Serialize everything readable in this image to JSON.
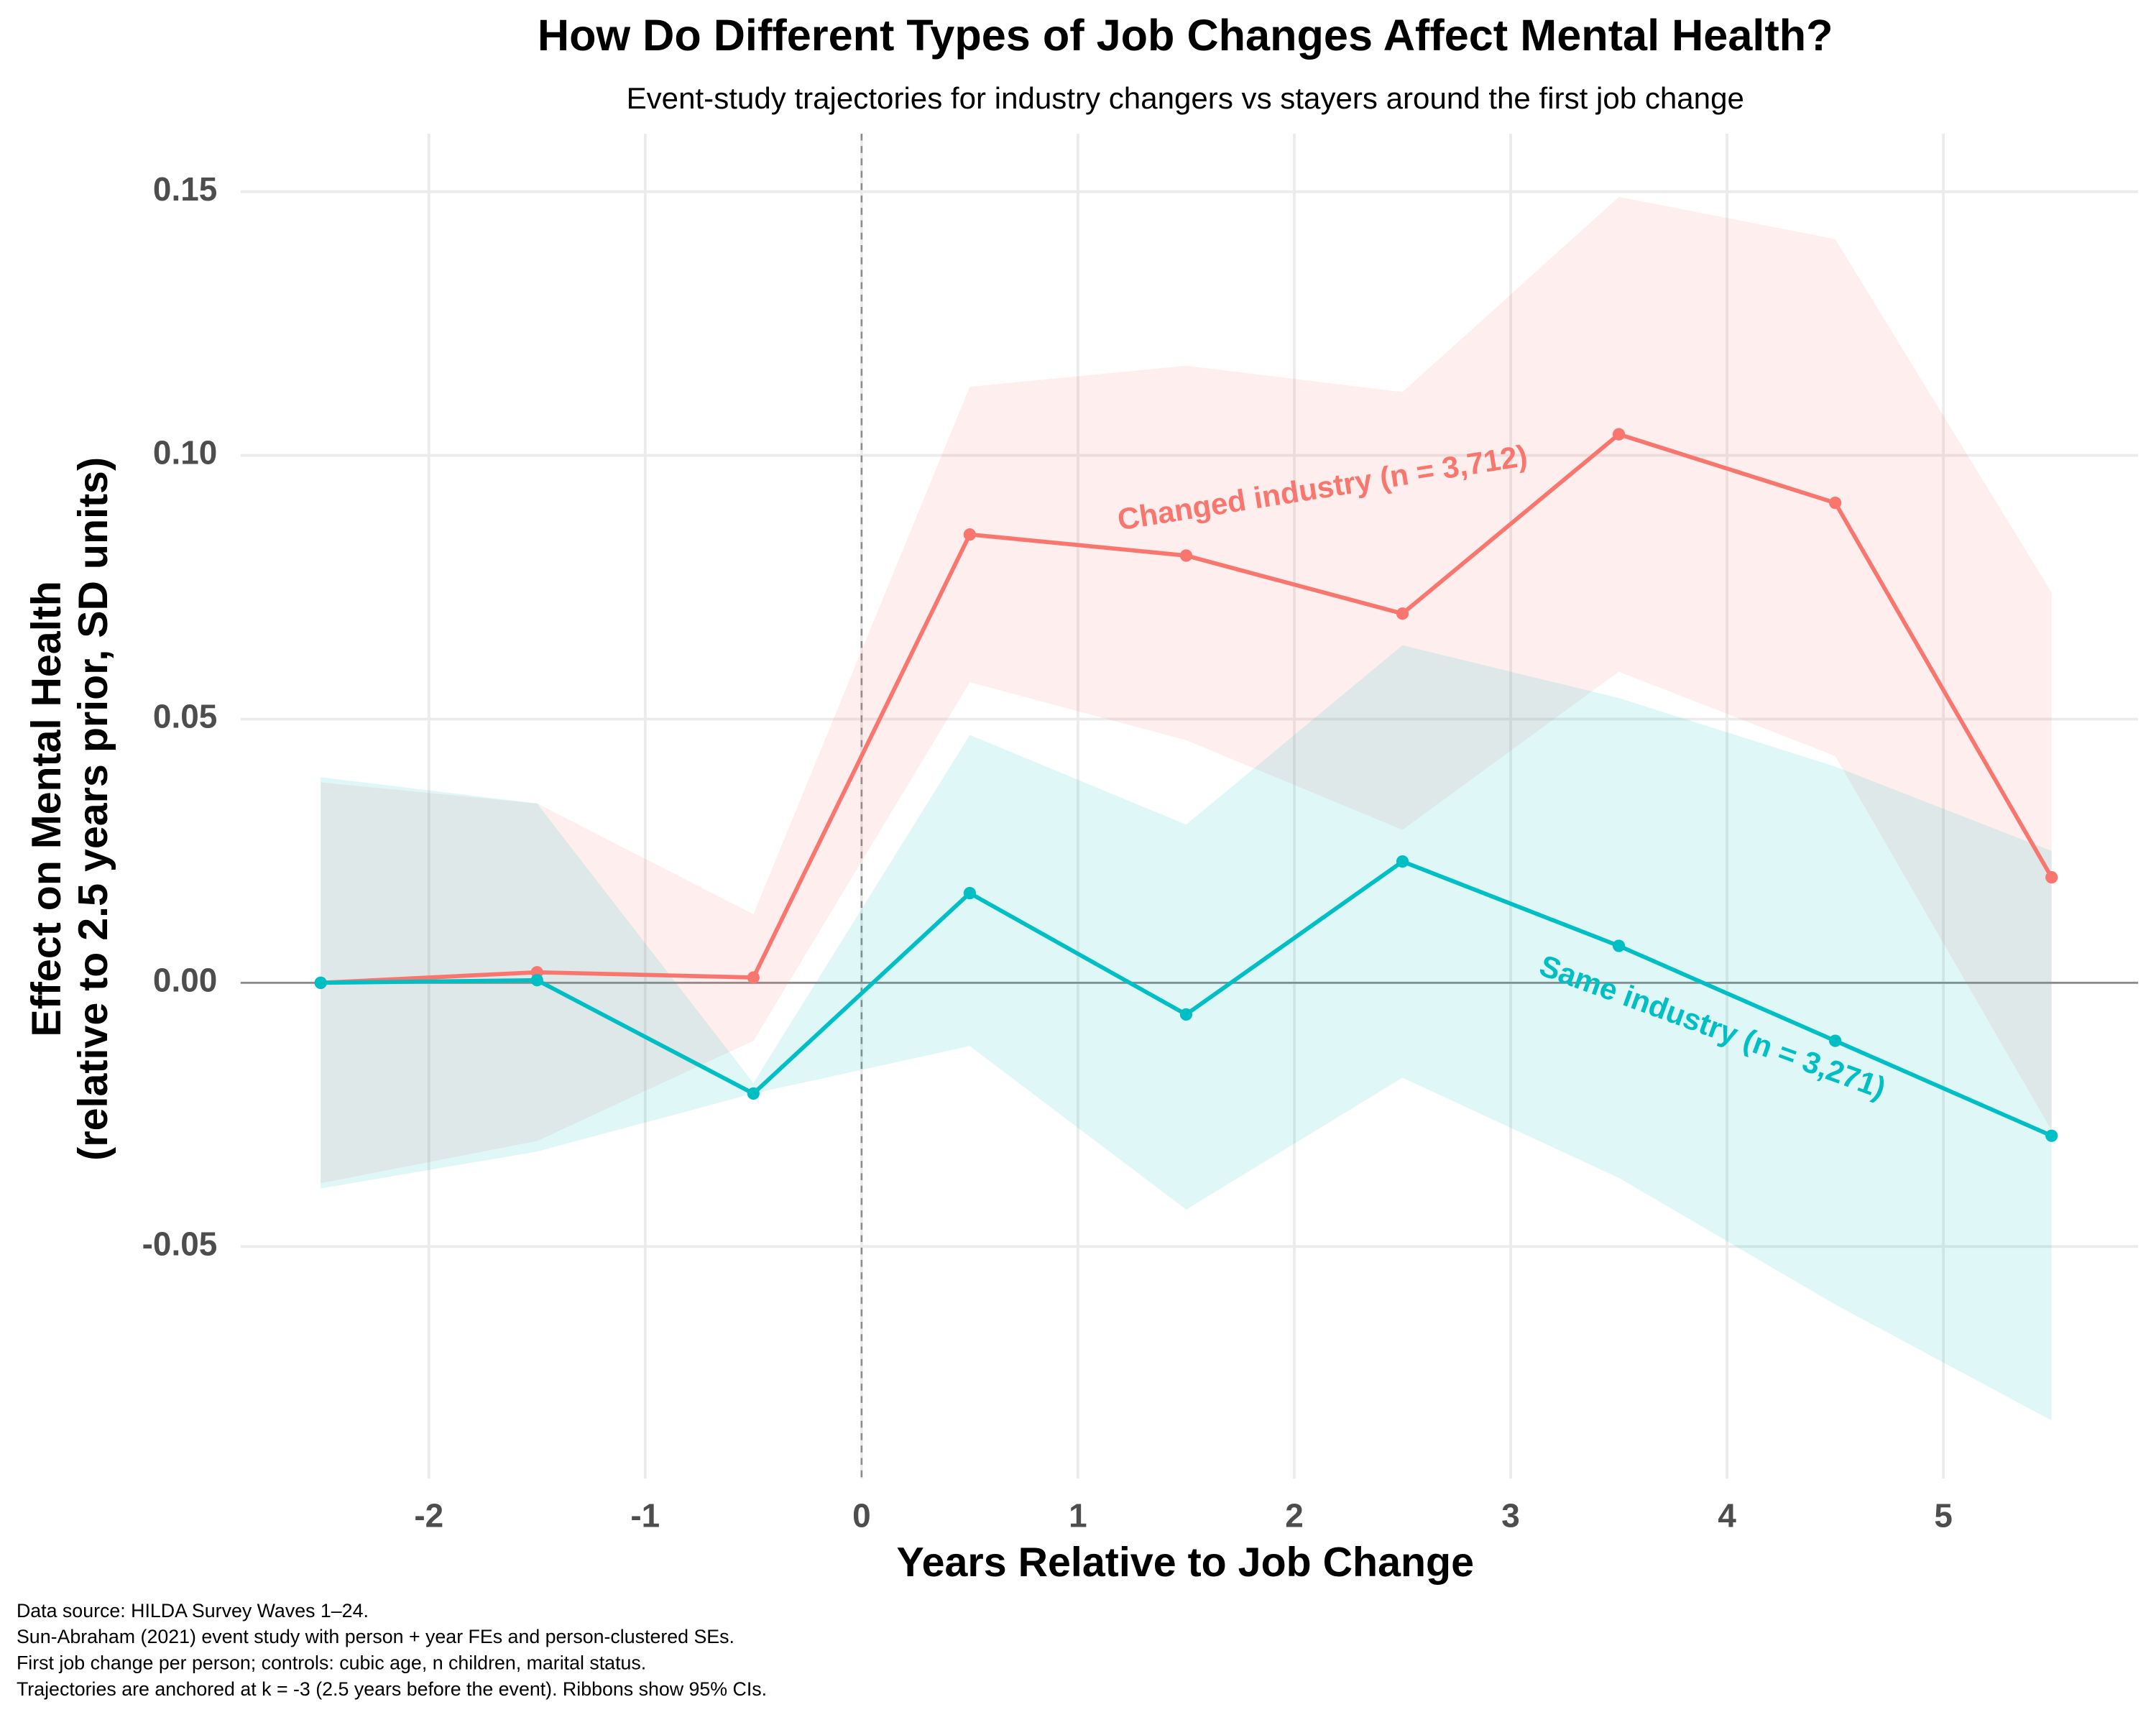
{
  "chart_data": {
    "type": "line",
    "title": "How Do Different Types of Job Changes Affect Mental Health?",
    "subtitle": "Event-study trajectories for industry changers vs stayers around the first job change",
    "x_label": "Years Relative to Job Change",
    "y_label": [
      "Effect on Mental Health",
      "(relative to 2.5 years prior, SD units)"
    ],
    "caption": [
      "Data source: HILDA Survey Waves 1–24.",
      "Sun-Abraham (2021) event study with person + year FEs and person-clustered SEs.",
      "First job change per person; controls: cubic age, n children, marital status.",
      "Trajectories are anchored at k = -3 (2.5 years before the event). Ribbons show 95% CIs."
    ],
    "x": [
      -2.5,
      -1.5,
      -0.5,
      0.5,
      1.5,
      2.5,
      3.5,
      4.5,
      5.5
    ],
    "series": [
      {
        "name": "Changed industry (n = 3,712)",
        "color": "#f8766d",
        "values": [
          0,
          0.002,
          0.001,
          0.085,
          0.081,
          0.07,
          0.104,
          0.091,
          0.02
        ],
        "lower": [
          -0.038,
          -0.03,
          -0.011,
          0.057,
          0.046,
          0.029,
          0.059,
          0.043,
          -0.028
        ],
        "upper": [
          0.038,
          0.034,
          0.013,
          0.113,
          0.117,
          0.112,
          0.149,
          0.141,
          0.074
        ]
      },
      {
        "name": "Same industry (n = 3,271)",
        "color": "#00bfc4",
        "values": [
          0,
          0.0005,
          -0.021,
          0.017,
          -0.006,
          0.023,
          0.007,
          -0.011,
          -0.029
        ],
        "lower": [
          -0.039,
          -0.032,
          -0.021,
          -0.012,
          -0.043,
          -0.018,
          -0.037,
          -0.061,
          -0.083
        ],
        "upper": [
          0.039,
          0.034,
          -0.019,
          0.047,
          0.03,
          0.064,
          0.054,
          0.041,
          0.025
        ]
      }
    ],
    "xlim": [
      -2.87,
      5.9
    ],
    "ylim": [
      -0.094,
      0.161
    ],
    "xticks": [
      -2,
      -1,
      0,
      1,
      2,
      3,
      4,
      5
    ],
    "yticks": [
      {
        "value": -0.05,
        "label": "-0.05"
      },
      {
        "value": 0,
        "label": "0.00"
      },
      {
        "value": 0.05,
        "label": "0.05"
      },
      {
        "value": 0.1,
        "label": "0.10"
      },
      0.15
    ],
    "vline": 0,
    "hline": 0,
    "grid": true
  }
}
